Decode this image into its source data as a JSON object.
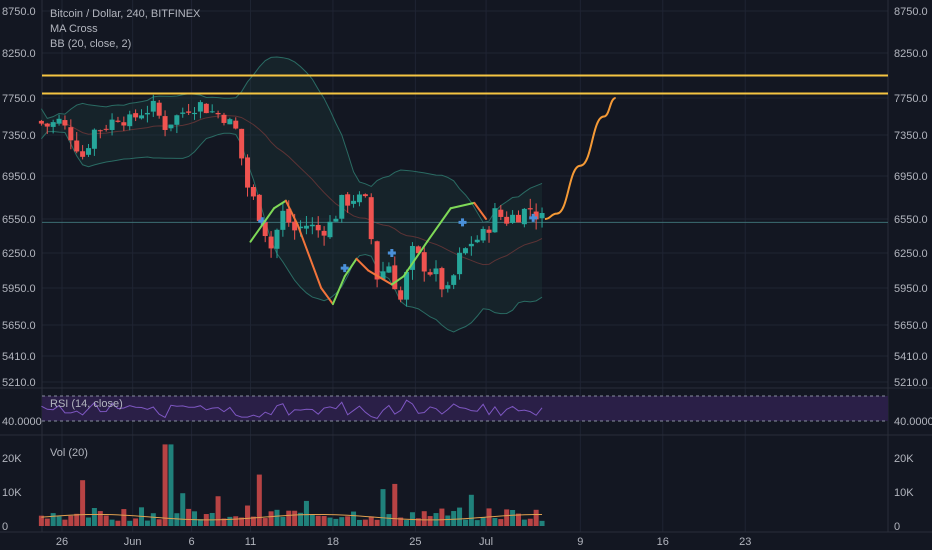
{
  "legend": {
    "symbol": "Bitcoin / Dollar, 240, BITFINEX",
    "ma_cross": "MA Cross",
    "bb": "BB (20, close, 2)"
  },
  "colors": {
    "background": "#131722",
    "grid": "#1f2433",
    "up": "#26a69a",
    "down": "#ef5350",
    "resistance": "#f5c542",
    "projection": "#f59a36",
    "bb_band": "#2a6b63",
    "rsi_line": "#7e57c2",
    "rsi_fill": "#2a1f47",
    "axis_text": "#b2b5be",
    "support_line": "#3c6e73"
  },
  "chart_data": [
    {
      "type": "candlestick",
      "title": "Bitcoin / Dollar, 240, BITFINEX",
      "x_ticks": [
        "26",
        "Jun",
        "6",
        "11",
        "18",
        "25",
        "Jul",
        "9",
        "16",
        "23"
      ],
      "y_ticks": [
        5210.0,
        5410.0,
        5650.0,
        5950.0,
        6250.0,
        6550.0,
        6950.0,
        7350.0,
        7750.0,
        8250.0,
        8750.0
      ],
      "y_tick_labels": [
        "5210.0",
        "5410.0",
        "5650.0",
        "5950.0",
        "6250.0",
        "6550.0",
        "6950.0",
        "7350.0",
        "7750.0",
        "8250.0",
        "8750.0"
      ],
      "ylim": [
        5210,
        8750
      ],
      "resistance_levels": [
        8000,
        7800
      ],
      "support_level": 6520,
      "close_path": [
        {
          "date": "May 24",
          "close": 7500
        },
        {
          "date": "May 25",
          "close": 7450
        },
        {
          "date": "May 26",
          "close": 7500
        },
        {
          "date": "May 27",
          "close": 7350
        },
        {
          "date": "May 28",
          "close": 7150
        },
        {
          "date": "May 29",
          "close": 7400
        },
        {
          "date": "May 30",
          "close": 7450
        },
        {
          "date": "May 31",
          "close": 7550
        },
        {
          "date": "Jun 1",
          "close": 7500
        },
        {
          "date": "Jun 2",
          "close": 7600
        },
        {
          "date": "Jun 3",
          "close": 7650
        },
        {
          "date": "Jun 4",
          "close": 7450
        },
        {
          "date": "Jun 5",
          "close": 7550
        },
        {
          "date": "Jun 6",
          "close": 7650
        },
        {
          "date": "Jun 7",
          "close": 7680
        },
        {
          "date": "Jun 8",
          "close": 7600
        },
        {
          "date": "Jun 9",
          "close": 7550
        },
        {
          "date": "Jun 10",
          "close": 7400
        },
        {
          "date": "Jun 11",
          "close": 6850
        },
        {
          "date": "Jun 12",
          "close": 6600
        },
        {
          "date": "Jun 13",
          "close": 6300
        },
        {
          "date": "Jun 14",
          "close": 6600
        },
        {
          "date": "Jun 15",
          "close": 6450
        },
        {
          "date": "Jun 16",
          "close": 6500
        },
        {
          "date": "Jun 17",
          "close": 6450
        },
        {
          "date": "Jun 18",
          "close": 6500
        },
        {
          "date": "Jun 19",
          "close": 6700
        },
        {
          "date": "Jun 20",
          "close": 6750
        },
        {
          "date": "Jun 21",
          "close": 6700
        },
        {
          "date": "Jun 22",
          "close": 6050
        },
        {
          "date": "Jun 23",
          "close": 6150
        },
        {
          "date": "Jun 24",
          "close": 5850
        },
        {
          "date": "Jun 25",
          "close": 6250
        },
        {
          "date": "Jun 26",
          "close": 6150
        },
        {
          "date": "Jun 27",
          "close": 6050
        },
        {
          "date": "Jun 28",
          "close": 5900
        },
        {
          "date": "Jun 29",
          "close": 6200
        },
        {
          "date": "Jun 30",
          "close": 6350
        },
        {
          "date": "Jul 1",
          "close": 6400
        },
        {
          "date": "Jul 2",
          "close": 6600
        },
        {
          "date": "Jul 3",
          "close": 6550
        },
        {
          "date": "Jul 4",
          "close": 6600
        },
        {
          "date": "Jul 5",
          "close": 6650
        },
        {
          "date": "Jul 6",
          "close": 6550
        }
      ],
      "projection_path": [
        {
          "date": "Jul 6",
          "value": 6550
        },
        {
          "date": "Jul 7",
          "value": 6600
        },
        {
          "date": "Jul 9",
          "value": 7050
        },
        {
          "date": "Jul 11",
          "value": 7550
        },
        {
          "date": "Jul 12",
          "value": 7750
        }
      ]
    },
    {
      "type": "line",
      "title": "RSI (14, close)",
      "y_ticks": [
        40.0
      ],
      "y_tick_labels": [
        "40.0000"
      ],
      "current_value_label": "40.0000"
    },
    {
      "type": "bar",
      "title": "Vol (20)",
      "y_ticks": [
        0,
        10000,
        20000
      ],
      "y_tick_labels": [
        "0",
        "10K",
        "20K"
      ]
    }
  ]
}
